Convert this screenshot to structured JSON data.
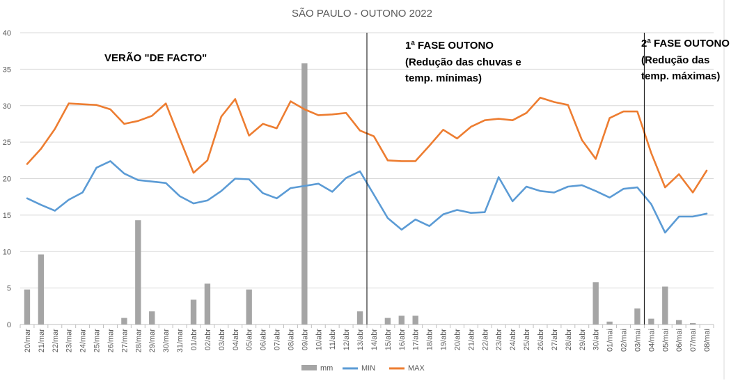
{
  "chart_data": {
    "type": "bar",
    "title": "SÃO PAULO - OUTONO 2022",
    "xlabel": "",
    "ylabel": "",
    "ylim": [
      0,
      40
    ],
    "yticks": [
      0,
      5,
      10,
      15,
      20,
      25,
      30,
      35,
      40
    ],
    "grid": true,
    "legend_position": "bottom",
    "categories": [
      "20/mar",
      "21/mar",
      "22/mar",
      "23/mar",
      "24/mar",
      "25/mar",
      "26/mar",
      "27/mar",
      "28/mar",
      "29/mar",
      "30/mar",
      "31/mar",
      "01/abr",
      "02/abr",
      "03/abr",
      "04/abr",
      "05/abr",
      "06/abr",
      "07/abr",
      "08/abr",
      "09/abr",
      "10/abr",
      "11/abr",
      "12/abr",
      "13/abr",
      "14/abr",
      "15/abr",
      "16/abr",
      "17/abr",
      "18/abr",
      "19/abr",
      "20/abr",
      "21/abr",
      "22/abr",
      "23/abr",
      "24/abr",
      "25/abr",
      "26/abr",
      "27/abr",
      "28/abr",
      "29/abr",
      "30/abr",
      "01/mai",
      "02/mai",
      "03/mai",
      "04/mai",
      "05/mai",
      "06/mai",
      "07/mai",
      "08/mai"
    ],
    "series": [
      {
        "name": "mm",
        "type": "bar",
        "color": "#a5a5a5",
        "values": [
          4.8,
          9.6,
          0,
          0,
          0,
          0,
          0,
          0.9,
          14.3,
          1.8,
          0,
          0,
          3.4,
          5.6,
          0,
          0,
          4.8,
          0,
          0,
          0,
          35.8,
          0,
          0,
          0,
          1.8,
          0,
          0.9,
          1.2,
          1.2,
          0,
          0,
          0,
          0,
          0,
          0,
          0,
          0,
          0,
          0,
          0,
          0,
          5.8,
          0.4,
          0,
          2.2,
          0.8,
          5.2,
          0.6,
          0.2,
          0
        ]
      },
      {
        "name": "MIN",
        "type": "line",
        "color": "#5b9bd5",
        "values": [
          17.3,
          16.4,
          15.6,
          17.1,
          18.1,
          21.5,
          22.4,
          20.7,
          19.8,
          19.6,
          19.4,
          17.6,
          16.6,
          17.0,
          18.3,
          20.0,
          19.9,
          18.0,
          17.3,
          18.7,
          19.0,
          19.3,
          18.2,
          20.1,
          21.0,
          17.8,
          14.6,
          13.0,
          14.4,
          13.5,
          15.1,
          15.7,
          15.3,
          15.4,
          20.2,
          16.9,
          18.9,
          18.3,
          18.1,
          18.9,
          19.1,
          18.3,
          17.4,
          18.6,
          18.8,
          16.5,
          12.6,
          14.8,
          14.8,
          15.2
        ]
      },
      {
        "name": "MAX",
        "type": "line",
        "color": "#ed7d31",
        "values": [
          22.0,
          24.1,
          26.8,
          30.3,
          30.2,
          30.1,
          29.5,
          27.5,
          27.9,
          28.6,
          30.3,
          25.5,
          20.8,
          22.5,
          28.5,
          30.9,
          25.9,
          27.5,
          26.9,
          30.6,
          29.5,
          28.7,
          28.8,
          29.0,
          26.6,
          25.8,
          22.5,
          22.4,
          22.4,
          24.5,
          26.7,
          25.5,
          27.1,
          28.0,
          28.2,
          28.0,
          29.0,
          31.1,
          30.5,
          30.1,
          25.3,
          22.7,
          28.3,
          29.2,
          29.2,
          23.5,
          18.8,
          20.6,
          18.1,
          21.1
        ]
      }
    ],
    "phase_dividers": [
      {
        "after_category": "13/abr"
      },
      {
        "after_category": "03/mai"
      }
    ],
    "annotations": {
      "verao": [
        "VERÃO \"DE FACTO\""
      ],
      "fase1": [
        "1ª FASE OUTONO",
        "(Redução das chuvas e",
        "temp. mínimas)"
      ],
      "fase2": [
        "2ª FASE OUTONO",
        "(Redução das",
        "temp. máximas)"
      ]
    }
  }
}
